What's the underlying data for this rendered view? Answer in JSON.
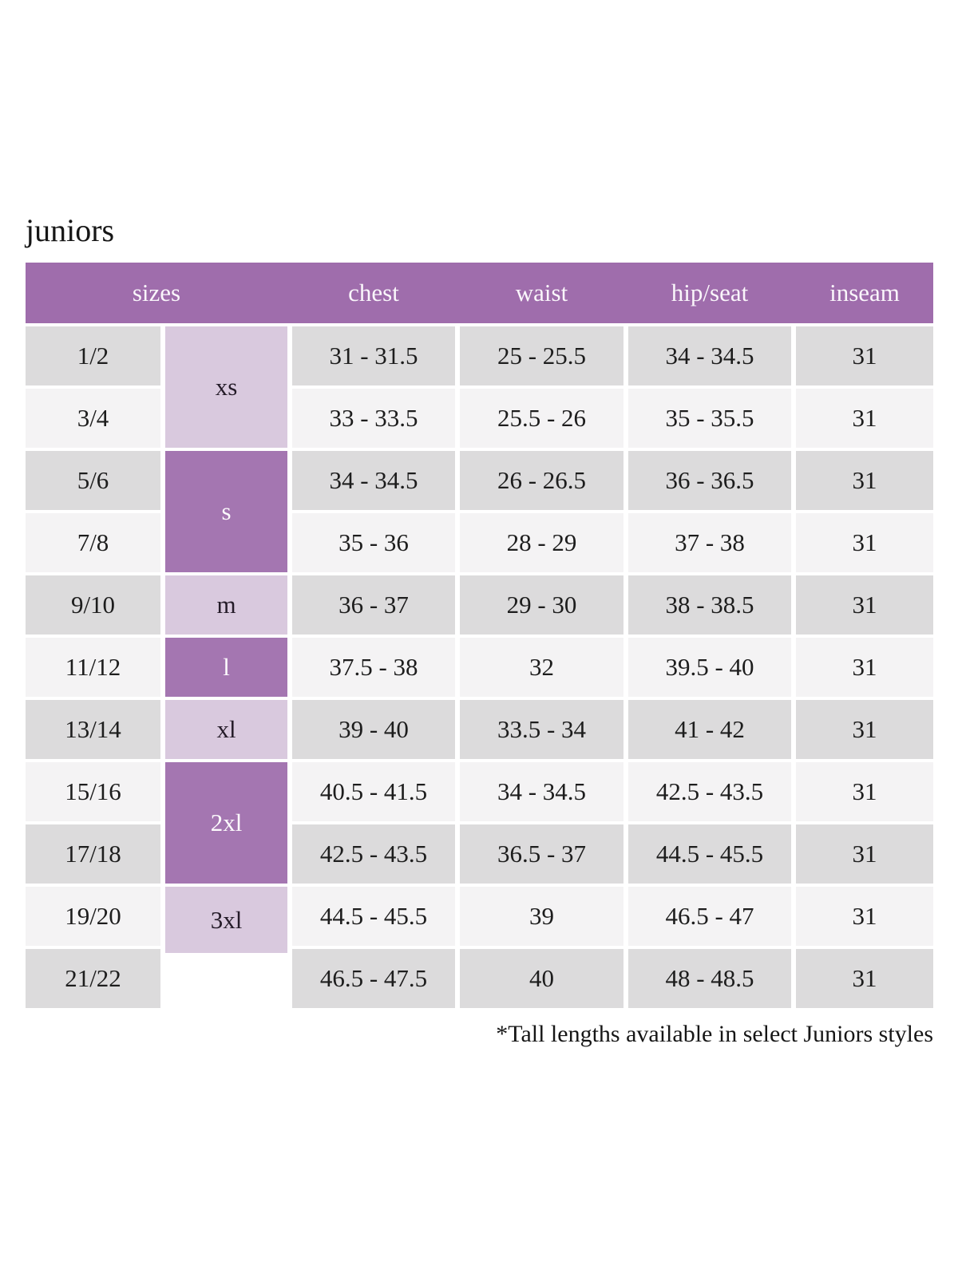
{
  "page": {
    "title": "juniors",
    "footnote": "*Tall lengths available in select Juniors styles"
  },
  "colors": {
    "header_purple": "#9f6dac",
    "letter_cell_dark_purple": "#a476b1",
    "letter_cell_light_lavender": "#d9c9de",
    "row_stripe_gray": "#dcdbdc",
    "row_stripe_light": "#f4f3f4",
    "header_text": "#faf6fb",
    "body_text": "#1d1d1d"
  },
  "table": {
    "headers": [
      "sizes",
      "chest",
      "waist",
      "hip/seat",
      "inseam"
    ],
    "letters": [
      {
        "label": "xs"
      },
      {
        "label": "s"
      },
      {
        "label": "m"
      },
      {
        "label": "l"
      },
      {
        "label": "xl"
      },
      {
        "label": "2xl"
      },
      {
        "label": "3xl"
      }
    ],
    "rows": [
      {
        "size": "1/2",
        "chest": "31 - 31.5",
        "waist": "25 - 25.5",
        "hip": "34 - 34.5",
        "inseam": "31"
      },
      {
        "size": "3/4",
        "chest": "33 - 33.5",
        "waist": "25.5 - 26",
        "hip": "35 - 35.5",
        "inseam": "31"
      },
      {
        "size": "5/6",
        "chest": "34 - 34.5",
        "waist": "26 - 26.5",
        "hip": "36 - 36.5",
        "inseam": "31"
      },
      {
        "size": "7/8",
        "chest": "35 - 36",
        "waist": "28 - 29",
        "hip": "37 - 38",
        "inseam": "31"
      },
      {
        "size": "9/10",
        "chest": "36 - 37",
        "waist": "29 - 30",
        "hip": "38 - 38.5",
        "inseam": "31"
      },
      {
        "size": "11/12",
        "chest": "37.5 - 38",
        "waist": "32",
        "hip": "39.5 - 40",
        "inseam": "31"
      },
      {
        "size": "13/14",
        "chest": "39 - 40",
        "waist": "33.5 - 34",
        "hip": "41 - 42",
        "inseam": "31"
      },
      {
        "size": "15/16",
        "chest": "40.5 - 41.5",
        "waist": "34 - 34.5",
        "hip": "42.5 - 43.5",
        "inseam": "31"
      },
      {
        "size": "17/18",
        "chest": "42.5 - 43.5",
        "waist": "36.5 - 37",
        "hip": "44.5 - 45.5",
        "inseam": "31"
      },
      {
        "size": "19/20",
        "chest": "44.5 - 45.5",
        "waist": "39",
        "hip": "46.5 - 47",
        "inseam": "31"
      },
      {
        "size": "21/22",
        "chest": "46.5 - 47.5",
        "waist": "40",
        "hip": "48 - 48.5",
        "inseam": "31"
      }
    ]
  }
}
